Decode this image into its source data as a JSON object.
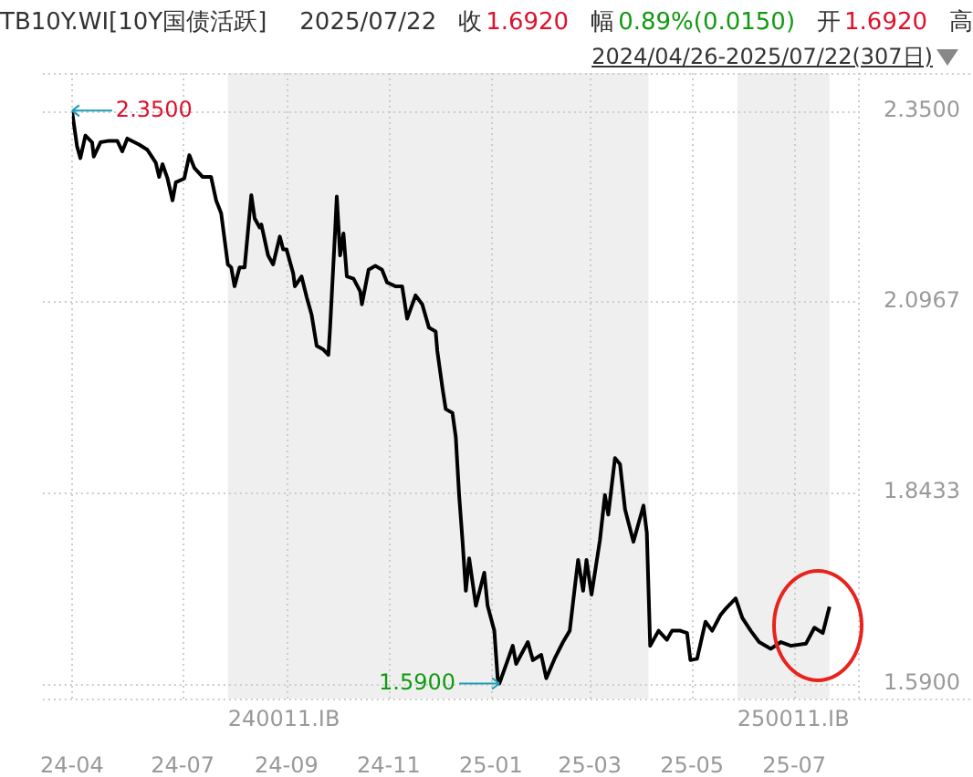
{
  "chart_data": {
    "type": "line",
    "title": "TB10Y.WI[10Y国债活跃]",
    "subtitle": "2024/04/26-2025/07/22(307日)",
    "annotations": [
      "2025/07/22",
      "收",
      "1.6920",
      "幅",
      "0.89%(0.0150)",
      "开",
      "1.6920",
      "高",
      {
        "text": "2.3500",
        "x": "2024-04-26",
        "y": 2.35
      },
      {
        "text": "1.5900",
        "x": "2025-01-06",
        "y": 1.59
      }
    ],
    "x": [
      "2024-04-26",
      "2024-04-29",
      "2024-05-01",
      "2024-05-04",
      "2024-05-08",
      "2024-05-09",
      "2024-05-13",
      "2024-05-18",
      "2024-05-23",
      "2024-05-26",
      "2024-05-29",
      "2024-06-05",
      "2024-06-10",
      "2024-06-15",
      "2024-06-17",
      "2024-06-19",
      "2024-06-22",
      "2024-06-25",
      "2024-06-27",
      "2024-07-02",
      "2024-07-05",
      "2024-07-08",
      "2024-07-13",
      "2024-07-18",
      "2024-07-21",
      "2024-07-24",
      "2024-07-28",
      "2024-07-30",
      "2024-08-01",
      "2024-08-04",
      "2024-08-07",
      "2024-08-09",
      "2024-08-11",
      "2024-08-13",
      "2024-08-16",
      "2024-08-17",
      "2024-08-21",
      "2024-08-24",
      "2024-08-28",
      "2024-08-30",
      "2024-09-01",
      "2024-09-05",
      "2024-09-06",
      "2024-09-10",
      "2024-09-13",
      "2024-09-16",
      "2024-09-19",
      "2024-09-23",
      "2024-09-26",
      "2024-09-27",
      "2024-09-30",
      "2024-10-01",
      "2024-10-03",
      "2024-10-05",
      "2024-10-07",
      "2024-10-11",
      "2024-10-15",
      "2024-10-16",
      "2024-10-20",
      "2024-10-24",
      "2024-10-28",
      "2024-10-31",
      "2024-11-05",
      "2024-11-09",
      "2024-11-12",
      "2024-11-17",
      "2024-11-21",
      "2024-11-25",
      "2024-11-29",
      "2024-11-30",
      "2024-12-03",
      "2024-12-05",
      "2024-12-09",
      "2024-12-11",
      "2024-12-13",
      "2024-12-15",
      "2024-12-17",
      "2024-12-19",
      "2024-12-23",
      "2024-12-28",
      "2024-12-30",
      "2025-01-03",
      "2025-01-05",
      "2025-01-06",
      "2025-01-11",
      "2025-01-14",
      "2025-01-16",
      "2025-01-23",
      "2025-01-26",
      "2025-01-31",
      "2025-02-03",
      "2025-02-08",
      "2025-02-13",
      "2025-02-17",
      "2025-02-20",
      "2025-02-22",
      "2025-02-25",
      "2025-02-27",
      "2025-03-02",
      "2025-03-07",
      "2025-03-10",
      "2025-03-12",
      "2025-03-16",
      "2025-03-19",
      "2025-03-22",
      "2025-03-27",
      "2025-04-02",
      "2025-04-04",
      "2025-04-06",
      "2025-04-11",
      "2025-04-16",
      "2025-04-19",
      "2025-04-24",
      "2025-04-28",
      "2025-04-30",
      "2025-05-04",
      "2025-05-09",
      "2025-05-13",
      "2025-05-18",
      "2025-05-21",
      "2025-05-27",
      "2025-05-31",
      "2025-06-05",
      "2025-06-10",
      "2025-06-17",
      "2025-06-23",
      "2025-06-29",
      "2025-07-08",
      "2025-07-13",
      "2025-07-18",
      "2025-07-22"
    ],
    "series": [
      {
        "color": "#000000",
        "values": [
          2.35,
          2.303,
          2.287,
          2.317,
          2.308,
          2.289,
          2.308,
          2.31,
          2.31,
          2.296,
          2.313,
          2.305,
          2.298,
          2.281,
          2.262,
          2.279,
          2.26,
          2.231,
          2.255,
          2.26,
          2.291,
          2.274,
          2.262,
          2.262,
          2.231,
          2.214,
          2.146,
          2.142,
          2.117,
          2.142,
          2.142,
          2.19,
          2.238,
          2.207,
          2.195,
          2.199,
          2.158,
          2.146,
          2.183,
          2.166,
          2.166,
          2.134,
          2.117,
          2.13,
          2.103,
          2.079,
          2.038,
          2.033,
          2.026,
          2.062,
          2.19,
          2.236,
          2.158,
          2.187,
          2.13,
          2.127,
          2.11,
          2.093,
          2.139,
          2.144,
          2.139,
          2.122,
          2.117,
          2.117,
          2.074,
          2.105,
          2.093,
          2.062,
          2.057,
          2.031,
          1.983,
          1.954,
          1.949,
          1.917,
          1.84,
          1.78,
          1.713,
          1.756,
          1.693,
          1.737,
          1.693,
          1.66,
          1.597,
          1.59,
          1.621,
          1.64,
          1.616,
          1.645,
          1.621,
          1.628,
          1.597,
          1.623,
          1.645,
          1.66,
          1.717,
          1.754,
          1.713,
          1.754,
          1.708,
          1.78,
          1.84,
          1.814,
          1.889,
          1.881,
          1.821,
          1.778,
          1.826,
          1.79,
          1.64,
          1.66,
          1.648,
          1.66,
          1.66,
          1.657,
          1.621,
          1.623,
          1.672,
          1.66,
          1.681,
          1.689,
          1.703,
          1.677,
          1.66,
          1.645,
          1.636,
          1.645,
          1.64,
          1.643,
          1.664,
          1.657,
          1.692
        ]
      }
    ],
    "xlim": [
      "2024-04-26",
      "2025-08-08"
    ],
    "xticks": [
      {
        "value": "2024-04-26",
        "label": "24-04"
      },
      {
        "value": "2024-07-01",
        "label": "24-07"
      },
      {
        "value": "2024-09-01",
        "label": "24-09"
      },
      {
        "value": "2024-11-01",
        "label": "24-11"
      },
      {
        "value": "2025-01-01",
        "label": "25-01"
      },
      {
        "value": "2025-03-01",
        "label": "25-03"
      },
      {
        "value": "2025-05-01",
        "label": "25-05"
      },
      {
        "value": "2025-07-01",
        "label": "25-07"
      }
    ],
    "ylim": [
      1.57,
      2.4
    ],
    "yticks": [
      {
        "value": 1.59,
        "label": "1.5900"
      },
      {
        "value": 1.8433,
        "label": "1.8433"
      },
      {
        "value": 2.0967,
        "label": "2.0967"
      },
      {
        "value": 2.35,
        "label": "2.3500"
      }
    ],
    "bands": [
      {
        "axis": "x",
        "from": "2024-07-28",
        "to": "2025-04-05",
        "label": "240011.IB",
        "color": "#efefef"
      },
      {
        "axis": "x",
        "from": "2025-05-28",
        "to": "2025-07-22",
        "label": "250011.IB",
        "color": "#efefef"
      }
    ],
    "grid": true,
    "legend": false,
    "line_style": "solid"
  }
}
